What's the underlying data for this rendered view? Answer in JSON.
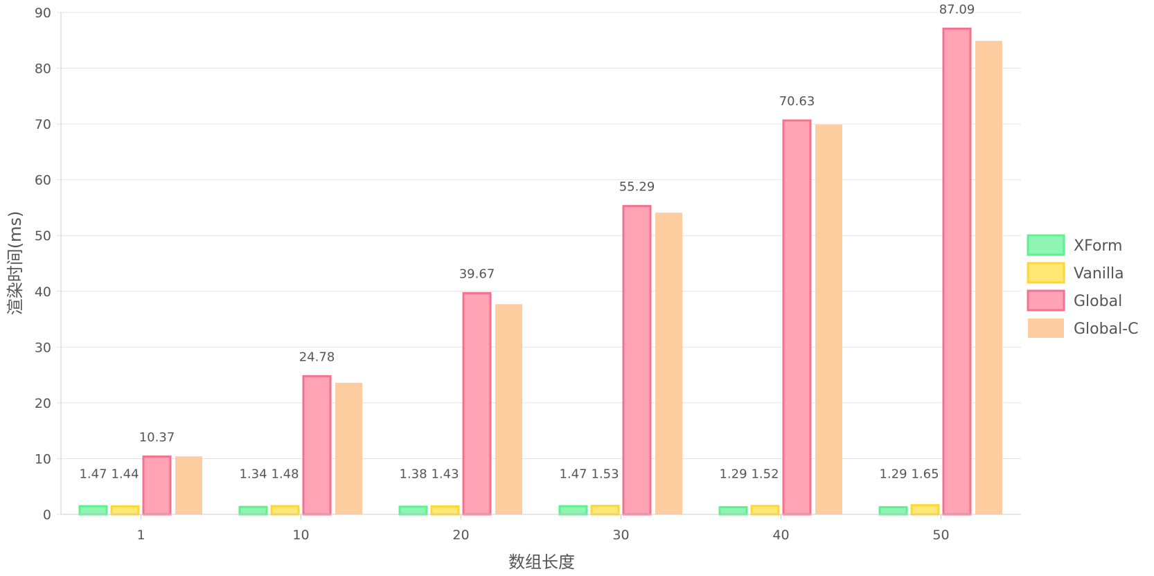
{
  "chart_data": {
    "type": "bar",
    "xlabel": "数组长度",
    "ylabel": "渲染时间(ms)",
    "categories": [
      "1",
      "10",
      "20",
      "30",
      "40",
      "50"
    ],
    "ylim": [
      0,
      90
    ],
    "yticks": [
      0,
      10,
      20,
      30,
      40,
      50,
      60,
      70,
      80,
      90
    ],
    "grid": true,
    "legend_position": "right",
    "series": [
      {
        "name": "XForm",
        "values": [
          1.47,
          1.34,
          1.38,
          1.47,
          1.29,
          1.29
        ],
        "fill": "#8ef5b4",
        "stroke": "#5ff090",
        "labeled": true
      },
      {
        "name": "Vanilla",
        "values": [
          1.44,
          1.48,
          1.43,
          1.53,
          1.52,
          1.65
        ],
        "fill": "#ffe873",
        "stroke": "#fdd835",
        "labeled": true
      },
      {
        "name": "Global",
        "values": [
          10.37,
          24.78,
          39.67,
          55.29,
          70.63,
          87.09
        ],
        "fill": "#ffa3b5",
        "stroke": "#f5728f",
        "labeled": true
      },
      {
        "name": "Global-C",
        "values": [
          10.4,
          23.6,
          37.7,
          54.1,
          69.9,
          84.9
        ],
        "fill": "#fdcc9f",
        "stroke": "#fdcc9f",
        "labeled": false
      }
    ]
  }
}
